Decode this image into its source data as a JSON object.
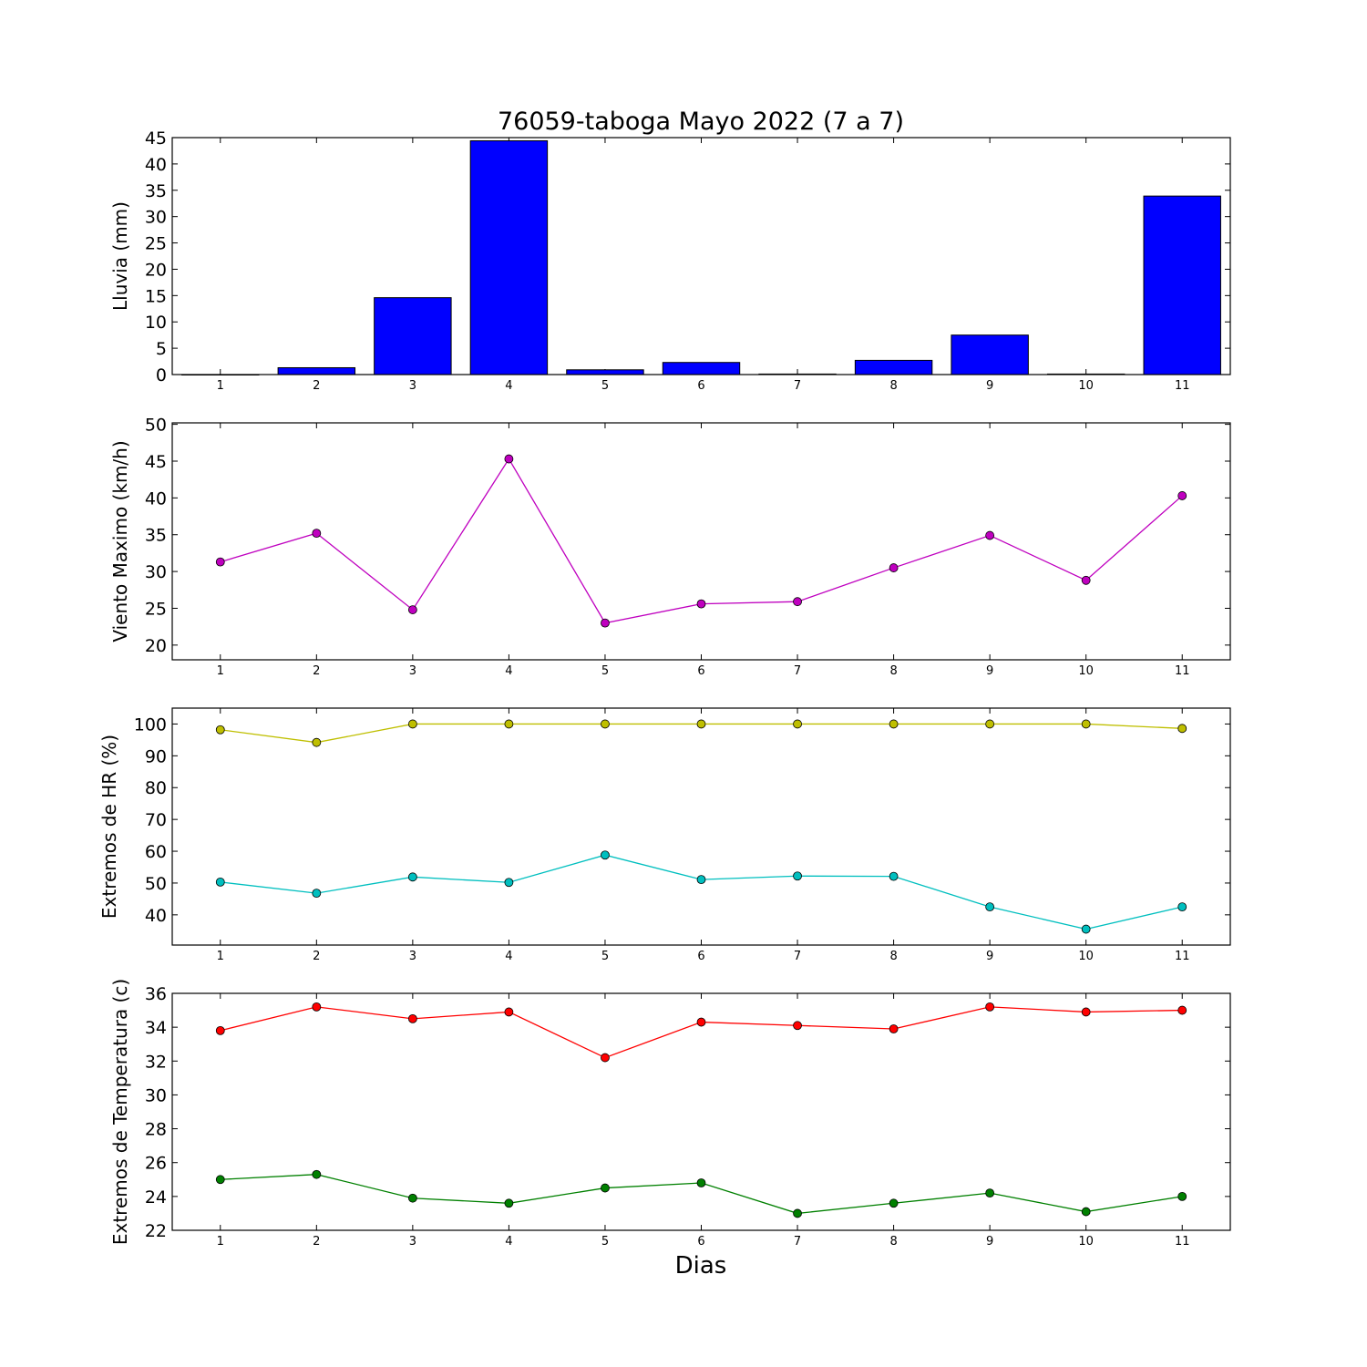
{
  "title": "76059-taboga Mayo 2022  (7 a 7)",
  "xlabel": "Dias",
  "chart_data": [
    {
      "type": "bar",
      "ylabel": "Lluvia (mm)",
      "categories": [
        1,
        2,
        3,
        4,
        5,
        6,
        7,
        8,
        9,
        10,
        11
      ],
      "ylim": [
        0,
        45
      ],
      "yticks": [
        0,
        5,
        10,
        15,
        20,
        25,
        30,
        35,
        40,
        45
      ],
      "xticks": [
        1,
        2,
        3,
        4,
        5,
        6,
        7,
        8,
        9,
        10,
        11
      ],
      "xlim": [
        0.5,
        11.5
      ],
      "series": [
        {
          "values": [
            0,
            1.3,
            14.6,
            44.4,
            0.9,
            2.3,
            0.1,
            2.7,
            7.5,
            0.1,
            33.9
          ],
          "color": "#0000ff"
        }
      ]
    },
    {
      "type": "line",
      "ylabel": "Viento Maximo (km/h)",
      "x": [
        1,
        2,
        3,
        4,
        5,
        6,
        7,
        8,
        9,
        10,
        11
      ],
      "ylim": [
        18,
        50.2
      ],
      "yticks": [
        20,
        25,
        30,
        35,
        40,
        45,
        50
      ],
      "xticks": [
        1,
        2,
        3,
        4,
        5,
        6,
        7,
        8,
        9,
        10,
        11
      ],
      "xlim": [
        0.5,
        11.5
      ],
      "series": [
        {
          "values": [
            31.3,
            35.2,
            24.8,
            45.3,
            23.0,
            25.6,
            25.9,
            30.5,
            34.9,
            28.8,
            40.3
          ],
          "color": "#bf00bf"
        }
      ]
    },
    {
      "type": "line",
      "ylabel": "Extremos de HR (%)",
      "x": [
        1,
        2,
        3,
        4,
        5,
        6,
        7,
        8,
        9,
        10,
        11
      ],
      "ylim": [
        30.5,
        105
      ],
      "yticks": [
        40,
        50,
        60,
        70,
        80,
        90,
        100
      ],
      "xticks": [
        1,
        2,
        3,
        4,
        5,
        6,
        7,
        8,
        9,
        10,
        11
      ],
      "xlim": [
        0.5,
        11.5
      ],
      "series": [
        {
          "values": [
            98.2,
            94.2,
            100,
            100,
            100,
            100,
            100,
            100,
            100,
            100,
            98.6
          ],
          "color": "#bfbf00"
        },
        {
          "values": [
            50.3,
            46.8,
            51.9,
            50.2,
            58.8,
            51.1,
            52.2,
            52.1,
            42.5,
            35.5,
            42.5
          ],
          "color": "#00bfbf"
        }
      ]
    },
    {
      "type": "line",
      "ylabel": "Extremos de Temperatura (c)",
      "x": [
        1,
        2,
        3,
        4,
        5,
        6,
        7,
        8,
        9,
        10,
        11
      ],
      "ylim": [
        22,
        36
      ],
      "yticks": [
        22,
        24,
        26,
        28,
        30,
        32,
        34,
        36
      ],
      "xticks": [
        1,
        2,
        3,
        4,
        5,
        6,
        7,
        8,
        9,
        10,
        11
      ],
      "xlim": [
        0.5,
        11.5
      ],
      "series": [
        {
          "values": [
            33.8,
            35.2,
            34.5,
            34.9,
            32.2,
            34.3,
            34.1,
            33.9,
            35.2,
            34.9,
            35.0
          ],
          "color": "#ff0000"
        },
        {
          "values": [
            25.0,
            25.3,
            23.9,
            23.6,
            24.5,
            24.8,
            23.0,
            23.6,
            24.2,
            23.1,
            24.0
          ],
          "color": "#008000"
        }
      ]
    }
  ]
}
